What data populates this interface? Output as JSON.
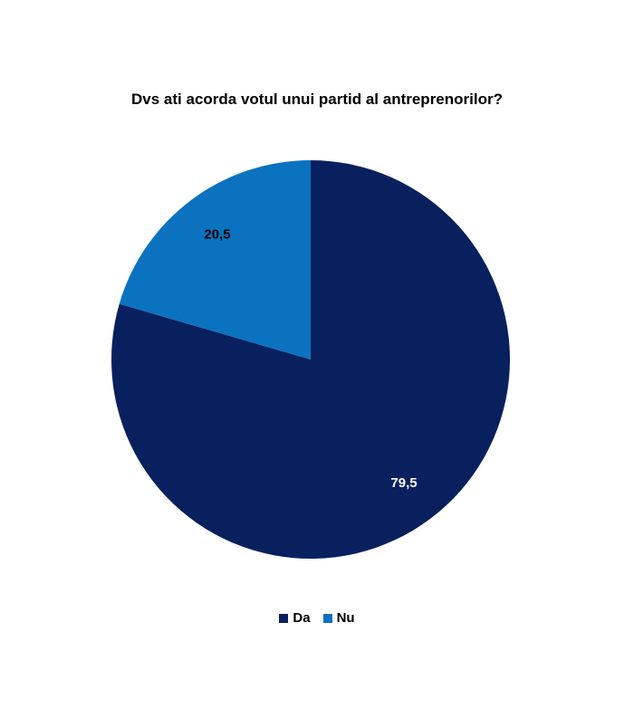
{
  "chart_data": {
    "type": "pie",
    "title": "Dvs ati acorda votul unui partid al antreprenorilor?",
    "categories": [
      "Da",
      "Nu"
    ],
    "values": [
      79.5,
      20.5
    ],
    "data_labels": [
      "79,5",
      "20,5"
    ],
    "colors": [
      "#08205e",
      "#0b72c0"
    ],
    "label_colors": [
      "#ffffff",
      "#000000"
    ],
    "start_angle_deg": 0,
    "direction": "clockwise",
    "legend": "bottom"
  }
}
